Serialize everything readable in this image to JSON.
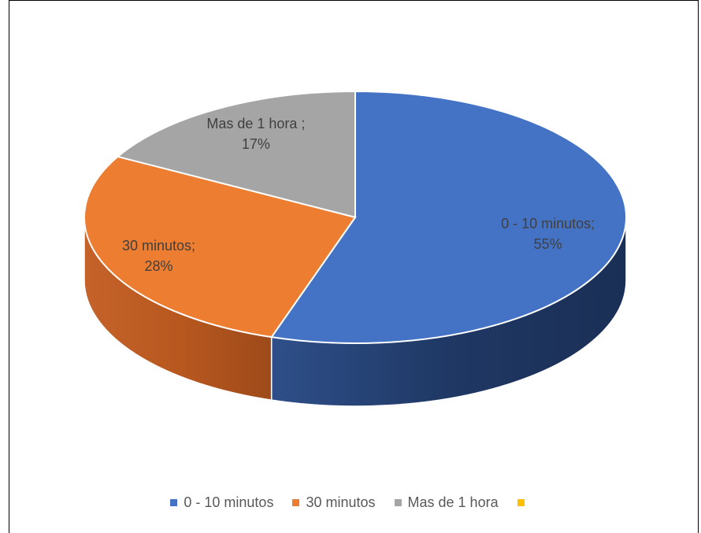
{
  "chart_data": {
    "type": "pie",
    "style": "3d",
    "title": "",
    "slices": [
      {
        "category": "0 - 10 minutos",
        "value": 55,
        "label_category": "0 - 10 minutos;",
        "label_value": "55%",
        "color": "#4472C4",
        "side_color": "#1F3864"
      },
      {
        "category": "30 minutos",
        "value": 28,
        "label_category": "30 minutos;",
        "label_value": "28%",
        "color": "#ED7D31",
        "side_color": "#A9511F"
      },
      {
        "category": "Mas de 1 hora",
        "value": 17,
        "label_category": "Mas de 1 hora ;",
        "label_value": "17%",
        "color": "#A5A5A5",
        "side_color": "#6E6E6E"
      }
    ],
    "legend": [
      {
        "label": "0 - 10 minutos",
        "color": "#4472C4"
      },
      {
        "label": "30 minutos",
        "color": "#ED7D31"
      },
      {
        "label": "Mas de 1 hora",
        "color": "#A5A5A5"
      },
      {
        "label": "",
        "color": "#FFC000"
      }
    ],
    "legend_position": "bottom"
  }
}
